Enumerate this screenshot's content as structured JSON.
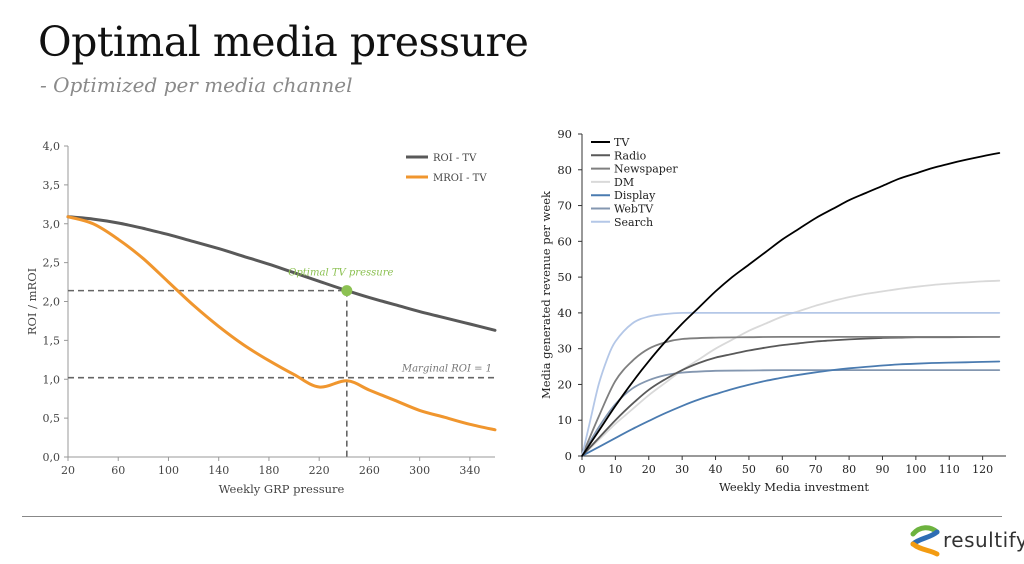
{
  "page": {
    "title": "Optimal media pressure",
    "subtitle": "- Optimized per media channel",
    "logo_text": "resultify"
  },
  "colors": {
    "roi_tv": "#595959",
    "mroi_tv": "#F0962E",
    "optimal_point": "#8CC152",
    "dashed": "#666666",
    "tv": "#000000",
    "radio": "#595959",
    "newspaper": "#7F7F7F",
    "dm": "#D9D9D9",
    "display": "#4A7BB0",
    "webtv": "#8497B0",
    "search": "#B4C7E7",
    "logo_green": "#6DB33F",
    "logo_blue": "#2E6DB4",
    "logo_orange": "#F39C12"
  },
  "chart_data": [
    {
      "type": "line",
      "title": "",
      "xlabel": "Weekly GRP pressure",
      "ylabel": "ROI / mROI",
      "xlim": [
        20,
        360
      ],
      "ylim": [
        0,
        4
      ],
      "x_ticks": [
        20,
        60,
        100,
        140,
        180,
        220,
        260,
        300,
        340
      ],
      "y_ticks": [
        "0,0",
        "0,5",
        "1,0",
        "1,5",
        "2,0",
        "2,5",
        "3,0",
        "3,5",
        "4,0"
      ],
      "legend": [
        "ROI - TV",
        "MROI - TV"
      ],
      "legend_position": "top-right",
      "series": [
        {
          "name": "ROI - TV",
          "x": [
            20,
            40,
            60,
            80,
            100,
            120,
            140,
            160,
            180,
            200,
            220,
            242,
            260,
            280,
            300,
            320,
            340,
            360
          ],
          "values": [
            3.09,
            3.06,
            3.01,
            2.94,
            2.86,
            2.77,
            2.68,
            2.58,
            2.48,
            2.37,
            2.26,
            2.14,
            2.05,
            1.96,
            1.87,
            1.79,
            1.71,
            1.63
          ]
        },
        {
          "name": "MROI - TV",
          "x": [
            20,
            40,
            60,
            80,
            100,
            120,
            140,
            160,
            180,
            200,
            220,
            242,
            260,
            280,
            300,
            320,
            340,
            360
          ],
          "values": [
            3.09,
            3.0,
            2.8,
            2.55,
            2.25,
            1.95,
            1.68,
            1.44,
            1.24,
            1.06,
            0.9,
            0.98,
            0.86,
            0.73,
            0.6,
            0.51,
            0.42,
            0.35
          ]
        }
      ],
      "annotations": {
        "optimal_label": "Optimal TV pressure",
        "optimal_point": {
          "x": 242,
          "y": 2.14
        },
        "marginal_label": "Marginal ROI = 1",
        "marginal_y": 1.02
      }
    },
    {
      "type": "line",
      "title": "",
      "xlabel": "Weekly Media investment",
      "ylabel": "Media generated revenue per week",
      "xlim": [
        0,
        127
      ],
      "ylim": [
        0,
        90
      ],
      "x_ticks": [
        0,
        10,
        20,
        30,
        40,
        50,
        60,
        70,
        80,
        90,
        100,
        110,
        120
      ],
      "y_ticks": [
        0,
        10,
        20,
        30,
        40,
        50,
        60,
        70,
        80,
        90
      ],
      "legend": [
        "TV",
        "Radio",
        "Newspaper",
        "DM",
        "Display",
        "WebTV",
        "Search"
      ],
      "legend_position": "top-left",
      "series": [
        {
          "name": "TV",
          "x": [
            0,
            5,
            10,
            15,
            20,
            25,
            30,
            35,
            40,
            45,
            50,
            55,
            60,
            65,
            70,
            75,
            80,
            85,
            90,
            95,
            100,
            105,
            110,
            115,
            120,
            125
          ],
          "values": [
            0,
            7,
            14,
            20.5,
            26.5,
            32,
            37,
            41.5,
            46,
            50,
            53.5,
            57,
            60.5,
            63.5,
            66.5,
            69,
            71.5,
            73.5,
            75.5,
            77.5,
            79,
            80.5,
            81.7,
            82.8,
            83.8,
            84.7
          ]
        },
        {
          "name": "Radio",
          "x": [
            0,
            5,
            10,
            15,
            20,
            25,
            30,
            35,
            40,
            45,
            50,
            55,
            60,
            65,
            70,
            75,
            80,
            85,
            90,
            95,
            100,
            110,
            120,
            125
          ],
          "values": [
            0,
            5,
            10,
            14.5,
            18.5,
            21.5,
            24,
            26,
            27.5,
            28.5,
            29.5,
            30.3,
            31,
            31.5,
            32,
            32.3,
            32.6,
            32.8,
            33,
            33.1,
            33.2,
            33.2,
            33.3,
            33.3
          ]
        },
        {
          "name": "Newspaper",
          "x": [
            0,
            5,
            10,
            15,
            20,
            25,
            30,
            40,
            50,
            60,
            80,
            100,
            125
          ],
          "values": [
            0,
            11,
            21,
            26.5,
            30,
            31.8,
            32.7,
            33.1,
            33.2,
            33.3,
            33.3,
            33.3,
            33.3
          ]
        },
        {
          "name": "DM",
          "x": [
            0,
            5,
            10,
            15,
            20,
            25,
            30,
            35,
            40,
            45,
            50,
            55,
            60,
            65,
            70,
            75,
            80,
            85,
            90,
            95,
            100,
            105,
            110,
            115,
            120,
            125
          ],
          "values": [
            0,
            4.5,
            9,
            13,
            17,
            20.5,
            24,
            27,
            30,
            32.5,
            35,
            37,
            39,
            40.5,
            42,
            43.3,
            44.4,
            45.3,
            46,
            46.7,
            47.3,
            47.8,
            48.2,
            48.5,
            48.8,
            49
          ]
        },
        {
          "name": "Display",
          "x": [
            0,
            5,
            10,
            15,
            20,
            25,
            30,
            35,
            40,
            45,
            50,
            55,
            60,
            65,
            70,
            75,
            80,
            85,
            90,
            95,
            100,
            105,
            110,
            115,
            120,
            125
          ],
          "values": [
            0,
            2.5,
            5,
            7.5,
            9.8,
            12,
            14,
            15.8,
            17.3,
            18.7,
            19.9,
            21,
            21.9,
            22.7,
            23.4,
            24,
            24.5,
            24.9,
            25.3,
            25.6,
            25.8,
            26,
            26.1,
            26.2,
            26.3,
            26.4
          ]
        },
        {
          "name": "WebTV",
          "x": [
            0,
            5,
            10,
            15,
            20,
            25,
            30,
            40,
            50,
            60,
            80,
            100,
            125
          ],
          "values": [
            0,
            8,
            14.5,
            18.8,
            21.2,
            22.6,
            23.3,
            23.8,
            23.9,
            24,
            24,
            24,
            24
          ]
        },
        {
          "name": "Search",
          "x": [
            0,
            2.5,
            5,
            7.5,
            10,
            15,
            20,
            25,
            30,
            40,
            60,
            80,
            100,
            125
          ],
          "values": [
            0,
            10,
            20,
            27,
            32,
            37,
            39,
            39.7,
            40,
            40,
            40,
            40,
            40,
            40
          ]
        }
      ]
    }
  ]
}
